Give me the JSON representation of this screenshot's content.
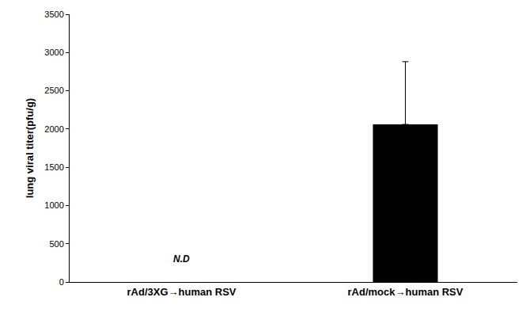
{
  "chart_data": {
    "type": "bar",
    "y_label": "lung viral titer(pfu/g)",
    "categories": [
      "rAd/3XG→human RSV",
      "rAd/mock→human RSV"
    ],
    "values": [
      null,
      2060
    ],
    "errors": [
      null,
      820
    ],
    "color": "#000000",
    "ylim": [
      0,
      3500
    ],
    "yticks": [
      0,
      500,
      1000,
      1500,
      2000,
      2500,
      3000,
      3500
    ],
    "grid": false,
    "annotations": [
      {
        "text": "N.D",
        "category": "rAd/3XG→human RSV",
        "y": 300
      }
    ]
  }
}
